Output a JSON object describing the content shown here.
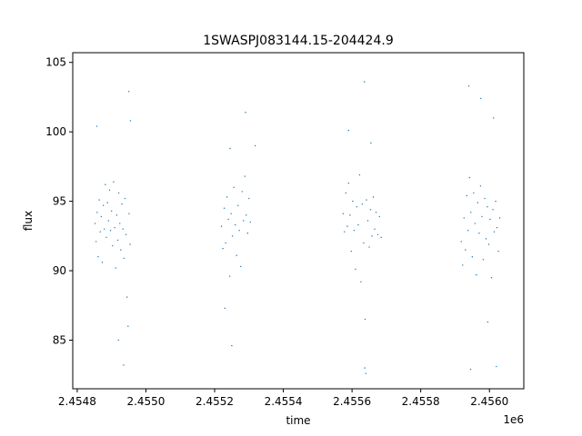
{
  "chart_data": {
    "type": "scatter",
    "title": "1SWASPJ083144.15-204424.9",
    "xlabel": "time",
    "ylabel": "flux",
    "x_offset_label": "1e6",
    "xlim": [
      2454787,
      2456100
    ],
    "ylim": [
      81.5,
      105.7
    ],
    "x_ticks": [
      2454800,
      2455000,
      2455200,
      2455400,
      2455600,
      2455800,
      2456000
    ],
    "x_tick_labels": [
      "2.4548",
      "2.4550",
      "2.4552",
      "2.4554",
      "2.4556",
      "2.4558",
      "2.4560"
    ],
    "y_ticks": [
      85,
      90,
      95,
      100,
      105
    ],
    "y_tick_labels": [
      "85",
      "90",
      "95",
      "100",
      "105"
    ],
    "grid": false,
    "marker_color": "#1f77b4",
    "series": [
      {
        "values_note": "dense light-curve observation points",
        "points": [
          [
            2454852,
            93.4
          ],
          [
            2454855,
            92.1
          ],
          [
            2454858,
            94.2
          ],
          [
            2454861,
            91.0
          ],
          [
            2454864,
            95.1
          ],
          [
            2454867,
            92.8
          ],
          [
            2454870,
            93.9
          ],
          [
            2454873,
            90.6
          ],
          [
            2454876,
            94.7
          ],
          [
            2454879,
            93.0
          ],
          [
            2454882,
            96.2
          ],
          [
            2454885,
            92.4
          ],
          [
            2454888,
            94.9
          ],
          [
            2454891,
            93.6
          ],
          [
            2454894,
            95.8
          ],
          [
            2454897,
            92.9
          ],
          [
            2454900,
            94.3
          ],
          [
            2454903,
            91.8
          ],
          [
            2454906,
            96.4
          ],
          [
            2454909,
            93.1
          ],
          [
            2454912,
            90.2
          ],
          [
            2454915,
            94.0
          ],
          [
            2454918,
            92.2
          ],
          [
            2454921,
            95.6
          ],
          [
            2454924,
            93.4
          ],
          [
            2454927,
            91.5
          ],
          [
            2454930,
            94.8
          ],
          [
            2454933,
            93.0
          ],
          [
            2454936,
            90.9
          ],
          [
            2454939,
            95.2
          ],
          [
            2454942,
            92.6
          ],
          [
            2454945,
            88.1
          ],
          [
            2454948,
            86.0
          ],
          [
            2454951,
            94.1
          ],
          [
            2454954,
            91.9
          ],
          [
            2454857,
            100.4
          ],
          [
            2454920,
            85.0
          ],
          [
            2454935,
            83.2
          ],
          [
            2454950,
            102.9
          ],
          [
            2454955,
            100.8
          ],
          [
            2455220,
            93.2
          ],
          [
            2455224,
            91.6
          ],
          [
            2455228,
            94.5
          ],
          [
            2455232,
            92.0
          ],
          [
            2455236,
            95.3
          ],
          [
            2455240,
            93.7
          ],
          [
            2455244,
            89.6
          ],
          [
            2455248,
            94.1
          ],
          [
            2455252,
            92.5
          ],
          [
            2455256,
            96.0
          ],
          [
            2455260,
            93.3
          ],
          [
            2455264,
            91.1
          ],
          [
            2455268,
            94.7
          ],
          [
            2455272,
            92.9
          ],
          [
            2455276,
            90.3
          ],
          [
            2455280,
            95.7
          ],
          [
            2455284,
            93.6
          ],
          [
            2455288,
            96.8
          ],
          [
            2455292,
            94.0
          ],
          [
            2455296,
            92.7
          ],
          [
            2455300,
            95.2
          ],
          [
            2455304,
            93.5
          ],
          [
            2455230,
            87.3
          ],
          [
            2455245,
            98.8
          ],
          [
            2455290,
            101.4
          ],
          [
            2455250,
            84.6
          ],
          [
            2455318,
            99.0
          ],
          [
            2455574,
            94.1
          ],
          [
            2455578,
            92.8
          ],
          [
            2455582,
            95.6
          ],
          [
            2455586,
            93.2
          ],
          [
            2455590,
            96.3
          ],
          [
            2455594,
            94.0
          ],
          [
            2455598,
            91.4
          ],
          [
            2455602,
            95.0
          ],
          [
            2455606,
            92.9
          ],
          [
            2455610,
            90.1
          ],
          [
            2455614,
            94.6
          ],
          [
            2455618,
            93.3
          ],
          [
            2455622,
            96.9
          ],
          [
            2455626,
            89.2
          ],
          [
            2455630,
            94.8
          ],
          [
            2455634,
            92.0
          ],
          [
            2455638,
            86.5
          ],
          [
            2455642,
            95.1
          ],
          [
            2455646,
            93.6
          ],
          [
            2455650,
            91.7
          ],
          [
            2455654,
            94.4
          ],
          [
            2455658,
            92.5
          ],
          [
            2455662,
            95.3
          ],
          [
            2455666,
            93.0
          ],
          [
            2455670,
            94.2
          ],
          [
            2455675,
            92.6
          ],
          [
            2455680,
            93.9
          ],
          [
            2455685,
            92.4
          ],
          [
            2455637,
            83.0
          ],
          [
            2455640,
            82.6
          ],
          [
            2455590,
            100.1
          ],
          [
            2455636,
            103.6
          ],
          [
            2455655,
            99.2
          ],
          [
            2455918,
            92.1
          ],
          [
            2455922,
            90.4
          ],
          [
            2455926,
            93.8
          ],
          [
            2455930,
            91.5
          ],
          [
            2455934,
            95.4
          ],
          [
            2455938,
            92.9
          ],
          [
            2455942,
            96.7
          ],
          [
            2455946,
            94.2
          ],
          [
            2455950,
            91.0
          ],
          [
            2455954,
            95.6
          ],
          [
            2455958,
            93.4
          ],
          [
            2455962,
            89.7
          ],
          [
            2455966,
            94.9
          ],
          [
            2455970,
            92.7
          ],
          [
            2455974,
            96.1
          ],
          [
            2455978,
            93.9
          ],
          [
            2455982,
            90.8
          ],
          [
            2455986,
            95.2
          ],
          [
            2455990,
            92.3
          ],
          [
            2455994,
            94.6
          ],
          [
            2455998,
            91.9
          ],
          [
            2456002,
            93.7
          ],
          [
            2456006,
            89.5
          ],
          [
            2456010,
            94.4
          ],
          [
            2456014,
            92.8
          ],
          [
            2456018,
            95.0
          ],
          [
            2456022,
            93.1
          ],
          [
            2456026,
            91.4
          ],
          [
            2456030,
            93.8
          ],
          [
            2455940,
            103.3
          ],
          [
            2455945,
            82.9
          ],
          [
            2455975,
            102.4
          ],
          [
            2455995,
            86.3
          ],
          [
            2456012,
            101.0
          ],
          [
            2456020,
            83.1
          ]
        ]
      }
    ]
  }
}
